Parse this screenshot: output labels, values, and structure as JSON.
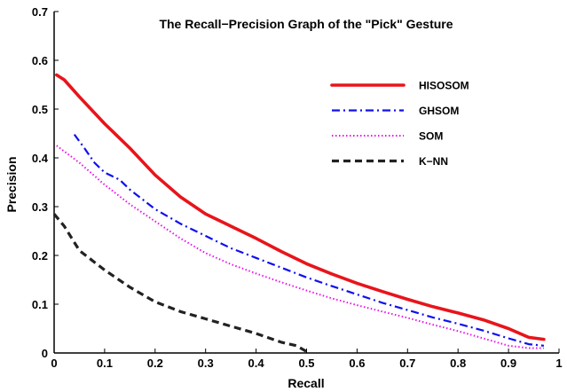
{
  "chart_data": {
    "type": "line",
    "title": "The Recall−Precision Graph of the \"Pick\" Gesture",
    "xlabel": "Recall",
    "ylabel": "Precision",
    "xlim": [
      0,
      1
    ],
    "ylim": [
      0,
      0.7
    ],
    "x_ticks": [
      "0",
      "0.1",
      "0.2",
      "0.3",
      "0.4",
      "0.5",
      "0.6",
      "0.7",
      "0.8",
      "0.9",
      "1"
    ],
    "y_ticks": [
      "0",
      "0.1",
      "0.2",
      "0.3",
      "0.4",
      "0.5",
      "0.6",
      "0.7"
    ],
    "grid": false,
    "legend_position": "top-right",
    "series": [
      {
        "name": "HISOSOM",
        "color": "#e8141b",
        "style": "solid",
        "x": [
          0.005,
          0.02,
          0.05,
          0.1,
          0.15,
          0.2,
          0.25,
          0.3,
          0.35,
          0.4,
          0.45,
          0.5,
          0.55,
          0.6,
          0.65,
          0.7,
          0.75,
          0.8,
          0.85,
          0.9,
          0.94,
          0.97
        ],
        "y": [
          0.57,
          0.56,
          0.525,
          0.47,
          0.42,
          0.365,
          0.32,
          0.285,
          0.26,
          0.235,
          0.208,
          0.183,
          0.162,
          0.143,
          0.126,
          0.11,
          0.095,
          0.082,
          0.068,
          0.05,
          0.032,
          0.028
        ]
      },
      {
        "name": "GHSOM",
        "color": "#1010ee",
        "style": "dashdot",
        "x": [
          0.04,
          0.06,
          0.08,
          0.1,
          0.13,
          0.15,
          0.2,
          0.25,
          0.3,
          0.35,
          0.4,
          0.45,
          0.5,
          0.55,
          0.6,
          0.65,
          0.7,
          0.75,
          0.8,
          0.85,
          0.9,
          0.94,
          0.97
        ],
        "y": [
          0.448,
          0.42,
          0.39,
          0.37,
          0.355,
          0.335,
          0.295,
          0.265,
          0.24,
          0.215,
          0.195,
          0.175,
          0.155,
          0.137,
          0.12,
          0.103,
          0.088,
          0.073,
          0.06,
          0.046,
          0.03,
          0.018,
          0.015
        ]
      },
      {
        "name": "SOM",
        "color": "#ee10ee",
        "style": "dotted",
        "x": [
          0.005,
          0.05,
          0.1,
          0.15,
          0.2,
          0.25,
          0.3,
          0.35,
          0.4,
          0.45,
          0.5,
          0.55,
          0.6,
          0.65,
          0.7,
          0.75,
          0.8,
          0.85,
          0.9,
          0.94,
          0.97
        ],
        "y": [
          0.425,
          0.39,
          0.345,
          0.305,
          0.27,
          0.235,
          0.205,
          0.182,
          0.163,
          0.145,
          0.128,
          0.112,
          0.098,
          0.085,
          0.072,
          0.058,
          0.045,
          0.03,
          0.015,
          0.01,
          0.01
        ]
      },
      {
        "name": "K−NN",
        "color": "#222222",
        "style": "dashed",
        "x": [
          0.0,
          0.02,
          0.05,
          0.1,
          0.15,
          0.2,
          0.25,
          0.3,
          0.35,
          0.4,
          0.45,
          0.48,
          0.5
        ],
        "y": [
          0.285,
          0.26,
          0.21,
          0.17,
          0.135,
          0.105,
          0.085,
          0.07,
          0.055,
          0.04,
          0.022,
          0.015,
          0.003
        ]
      }
    ]
  }
}
